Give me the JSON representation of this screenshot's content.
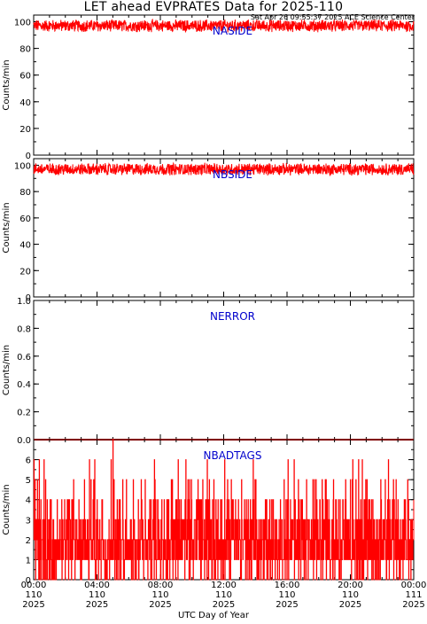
{
  "page": {
    "title": "LET ahead EVPRATES Data for 2025-110",
    "timestamp": "Sat Apr 26 09:55:37 2025 ACE Science Center"
  },
  "colors": {
    "data": "#ff0000",
    "panel_label": "#0000cc",
    "axes": "#000000"
  },
  "chart_data": [
    {
      "type": "line",
      "title": "NASIDE",
      "ylabel": "Counts/min",
      "xlim": [
        "00:00",
        "24:00"
      ],
      "ylim": [
        0,
        105
      ],
      "yticks": [
        0,
        20,
        40,
        60,
        80,
        100
      ],
      "ytick_labels": [
        "0",
        "20",
        "40",
        "60",
        "80",
        "100"
      ],
      "series": [
        {
          "profile": "noise",
          "mean": 97,
          "spread": 4,
          "min": 91,
          "max": 104
        }
      ]
    },
    {
      "type": "line",
      "title": "NBSIDE",
      "ylabel": "Counts/min",
      "xlim": [
        "00:00",
        "24:00"
      ],
      "ylim": [
        0,
        105
      ],
      "yticks": [
        0,
        20,
        40,
        60,
        80,
        100
      ],
      "ytick_labels": [
        "0",
        "20",
        "40",
        "60",
        "80",
        "100"
      ],
      "series": [
        {
          "profile": "noise",
          "mean": 97,
          "spread": 4,
          "min": 90,
          "max": 104
        }
      ]
    },
    {
      "type": "line",
      "title": "NERROR",
      "ylabel": "Counts/min",
      "xlim": [
        "00:00",
        "24:00"
      ],
      "ylim": [
        0,
        1
      ],
      "yticks": [
        0,
        0.2,
        0.4,
        0.6,
        0.8,
        1.0
      ],
      "ytick_labels": [
        "0.0",
        "0.2",
        "0.4",
        "0.6",
        "0.8",
        "1.0"
      ],
      "series": [
        {
          "profile": "constant",
          "value": 0
        }
      ]
    },
    {
      "type": "line",
      "title": "NBADTAGS",
      "ylabel": "Counts/min",
      "xlim": [
        "00:00",
        "24:00"
      ],
      "ylim": [
        0,
        7
      ],
      "yticks": [
        0,
        1,
        2,
        3,
        4,
        5,
        6
      ],
      "ytick_labels": [
        "0",
        "1",
        "2",
        "3",
        "4",
        "5",
        "6"
      ],
      "series": [
        {
          "profile": "poisson",
          "mean": 2,
          "max_observed": 7,
          "peak_hour": 5.0
        }
      ]
    }
  ],
  "x_axis": {
    "label": "UTC Day of Year",
    "ticks": [
      {
        "time": "00:00",
        "doy": "110",
        "year": "2025"
      },
      {
        "time": "04:00",
        "doy": "110",
        "year": "2025"
      },
      {
        "time": "08:00",
        "doy": "110",
        "year": "2025"
      },
      {
        "time": "12:00",
        "doy": "110",
        "year": "2025"
      },
      {
        "time": "16:00",
        "doy": "110",
        "year": "2025"
      },
      {
        "time": "20:00",
        "doy": "110",
        "year": "2025"
      },
      {
        "time": "00:00",
        "doy": "111",
        "year": "2025"
      }
    ]
  }
}
